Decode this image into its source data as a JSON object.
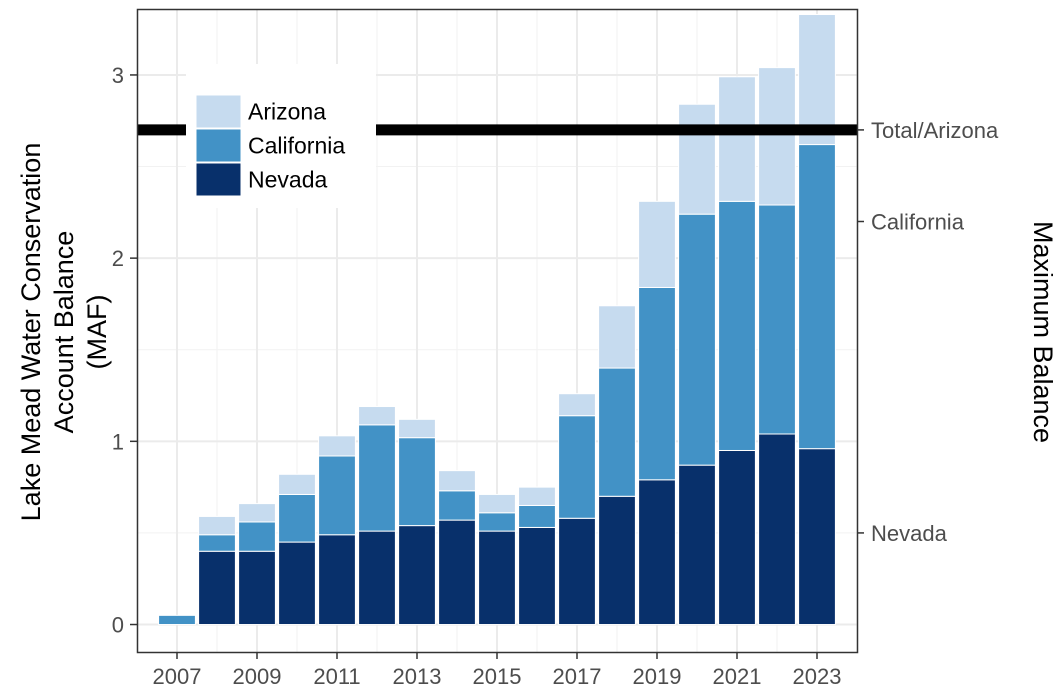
{
  "chart_data": {
    "type": "bar",
    "stacked": true,
    "ylabel_lines": [
      "Lake Mead Water Conservation",
      "Account Balance",
      "(MAF)"
    ],
    "secondary_ylabel": "Maximum Balance",
    "xlim": [
      2006,
      2024
    ],
    "ylim": [
      -0.15,
      3.36
    ],
    "x_ticks": [
      2007,
      2009,
      2011,
      2013,
      2015,
      2017,
      2019,
      2021,
      2023
    ],
    "y_ticks": [
      0,
      1,
      2,
      3
    ],
    "grid": true,
    "legend_position": "top-left",
    "categories": [
      2007,
      2008,
      2009,
      2010,
      2011,
      2012,
      2013,
      2014,
      2015,
      2016,
      2017,
      2018,
      2019,
      2020,
      2021,
      2022,
      2023
    ],
    "series": [
      {
        "name": "Nevada",
        "color": "#08306b",
        "values": [
          0,
          0.4,
          0.4,
          0.45,
          0.49,
          0.51,
          0.54,
          0.57,
          0.51,
          0.53,
          0.58,
          0.7,
          0.79,
          0.87,
          0.95,
          1.04,
          0.96
        ]
      },
      {
        "name": "California",
        "color": "#4292c6",
        "values": [
          0.05,
          0.09,
          0.16,
          0.26,
          0.43,
          0.58,
          0.48,
          0.16,
          0.1,
          0.12,
          0.56,
          0.7,
          1.05,
          1.37,
          1.36,
          1.25,
          1.66
        ]
      },
      {
        "name": "Arizona",
        "color": "#c6dbef",
        "values": [
          0,
          0.1,
          0.1,
          0.11,
          0.11,
          0.1,
          0.1,
          0.11,
          0.1,
          0.1,
          0.12,
          0.34,
          0.47,
          0.6,
          0.68,
          0.75,
          0.71
        ]
      }
    ],
    "legend_order": [
      "Arizona",
      "California",
      "Nevada"
    ],
    "max_balance_lines": [
      {
        "label": "Total/Arizona",
        "value": 2.7,
        "thick_line": true
      },
      {
        "label": "California",
        "value": 2.2,
        "thick_line": false
      },
      {
        "label": "Nevada",
        "value": 0.5,
        "thick_line": false
      }
    ]
  }
}
